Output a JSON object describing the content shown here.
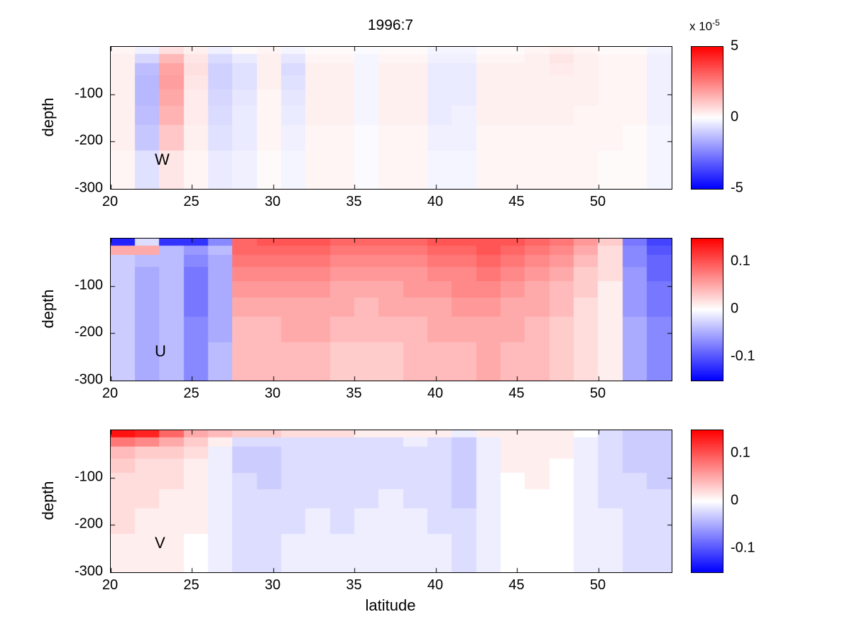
{
  "title": "1996:7",
  "axes": {
    "xlabel": "latitude",
    "ylabel": "depth"
  },
  "colors": {
    "positive_max": "#ff0000",
    "zero": "#ffffff",
    "negative_max": "#0000ff",
    "axis": "#000000",
    "background": "#ffffff"
  },
  "chart_data": [
    {
      "type": "heatmap",
      "label": "W",
      "x": {
        "name": "latitude",
        "range": [
          20,
          54.5
        ],
        "ticks": [
          20,
          25,
          30,
          35,
          40,
          45,
          50
        ]
      },
      "y": {
        "name": "depth",
        "range": [
          0,
          -300
        ],
        "ticks": [
          -100,
          -200,
          -300
        ]
      },
      "lat_edges": [
        20,
        21.5,
        23,
        24.5,
        26,
        27.5,
        29,
        30.5,
        32,
        33.5,
        35,
        36.5,
        38,
        39.5,
        41,
        42.5,
        44,
        45.5,
        47,
        48.5,
        50,
        51.5,
        53,
        54.5
      ],
      "depth_edges": [
        0,
        -15,
        -35,
        -60,
        -90,
        -125,
        -165,
        -220,
        -300
      ],
      "clim": [
        -5,
        5
      ],
      "value_scale": "1e-5",
      "colorbar": {
        "ticks": [
          {
            "value": 5,
            "label": "5"
          },
          {
            "value": 0,
            "label": "0"
          },
          {
            "value": -5,
            "label": "-5"
          }
        ],
        "exponent_prefix": "x 10",
        "exponent_sup": "-5"
      },
      "values": [
        [
          0.2,
          -0.3,
          0.6,
          0.3,
          -0.3,
          0.1,
          0.2,
          -0.2,
          0.1,
          0.1,
          -0.1,
          0.1,
          0.1,
          -0.2,
          -0.2,
          0.1,
          0.1,
          0.2,
          0.3,
          0.2,
          0.1,
          0.1,
          -0.2
        ],
        [
          0.3,
          -0.8,
          1.4,
          0.5,
          -0.7,
          -0.4,
          0.3,
          -0.5,
          0.2,
          0.2,
          -0.2,
          0.2,
          0.2,
          -0.3,
          -0.3,
          0.2,
          0.2,
          0.3,
          0.5,
          0.3,
          0.2,
          0.2,
          -0.3
        ],
        [
          0.3,
          -1.3,
          1.8,
          0.6,
          -0.9,
          -0.6,
          0.3,
          -0.7,
          0.3,
          0.3,
          -0.2,
          0.3,
          0.3,
          -0.4,
          -0.4,
          0.3,
          0.3,
          0.3,
          0.4,
          0.3,
          0.2,
          0.2,
          -0.3
        ],
        [
          0.3,
          -1.4,
          1.9,
          0.5,
          -0.9,
          -0.6,
          0.3,
          -0.6,
          0.3,
          0.3,
          -0.2,
          0.3,
          0.3,
          -0.4,
          -0.4,
          0.3,
          0.3,
          0.3,
          0.3,
          0.3,
          0.2,
          0.2,
          -0.3
        ],
        [
          0.3,
          -1.4,
          1.7,
          0.4,
          -0.8,
          -0.5,
          0.2,
          -0.5,
          0.3,
          0.3,
          -0.2,
          0.3,
          0.3,
          -0.4,
          -0.4,
          0.3,
          0.3,
          0.3,
          0.3,
          0.3,
          0.2,
          0.2,
          -0.3
        ],
        [
          0.3,
          -1.3,
          1.5,
          0.4,
          -0.7,
          -0.4,
          0.2,
          -0.4,
          0.3,
          0.3,
          -0.2,
          0.3,
          0.3,
          -0.4,
          -0.3,
          0.3,
          0.3,
          0.3,
          0.3,
          0.2,
          0.2,
          0.2,
          -0.3
        ],
        [
          0.3,
          -1.1,
          1.1,
          0.3,
          -0.6,
          -0.4,
          0.2,
          -0.3,
          0.2,
          0.2,
          -0.1,
          0.2,
          0.2,
          -0.3,
          -0.3,
          0.2,
          0.2,
          0.2,
          0.2,
          0.2,
          0.2,
          0.1,
          -0.2
        ],
        [
          0.2,
          -0.6,
          0.5,
          0.2,
          -0.4,
          -0.3,
          0.1,
          -0.2,
          0.2,
          0.2,
          -0.1,
          0.2,
          0.2,
          -0.2,
          -0.2,
          0.2,
          0.2,
          0.2,
          0.2,
          0.2,
          0.1,
          0.1,
          -0.2
        ]
      ]
    },
    {
      "type": "heatmap",
      "label": "U",
      "x": {
        "name": "latitude",
        "range": [
          20,
          54.5
        ],
        "ticks": [
          20,
          25,
          30,
          35,
          40,
          45,
          50
        ]
      },
      "y": {
        "name": "depth",
        "range": [
          0,
          -300
        ],
        "ticks": [
          -100,
          -200,
          -300
        ]
      },
      "lat_edges": [
        20,
        21.5,
        23,
        24.5,
        26,
        27.5,
        29,
        30.5,
        32,
        33.5,
        35,
        36.5,
        38,
        39.5,
        41,
        42.5,
        44,
        45.5,
        47,
        48.5,
        50,
        51.5,
        53,
        54.5
      ],
      "depth_edges": [
        0,
        -15,
        -35,
        -60,
        -90,
        -125,
        -165,
        -220,
        -300
      ],
      "clim": [
        -0.15,
        0.15
      ],
      "value_scale": "1",
      "colorbar": {
        "ticks": [
          {
            "value": 0.1,
            "label": "0.1"
          },
          {
            "value": 0,
            "label": "0"
          },
          {
            "value": -0.1,
            "label": "-0.1"
          }
        ]
      },
      "values": [
        [
          -0.13,
          -0.02,
          -0.12,
          -0.12,
          -0.07,
          0.09,
          0.1,
          0.1,
          0.1,
          0.09,
          0.09,
          0.09,
          0.09,
          0.1,
          0.1,
          0.1,
          0.1,
          0.09,
          0.08,
          0.06,
          0.03,
          -0.08,
          -0.11
        ],
        [
          0.05,
          0.05,
          -0.04,
          -0.06,
          -0.04,
          0.09,
          0.09,
          0.09,
          0.09,
          0.08,
          0.08,
          0.08,
          0.08,
          0.09,
          0.09,
          0.1,
          0.09,
          0.08,
          0.07,
          0.05,
          0.02,
          -0.07,
          -0.1
        ],
        [
          -0.03,
          -0.04,
          -0.04,
          -0.07,
          -0.05,
          0.08,
          0.08,
          0.08,
          0.08,
          0.07,
          0.07,
          0.07,
          0.07,
          0.08,
          0.08,
          0.09,
          0.08,
          0.07,
          0.06,
          0.04,
          0.02,
          -0.07,
          -0.09
        ],
        [
          -0.03,
          -0.05,
          -0.04,
          -0.08,
          -0.05,
          0.07,
          0.07,
          0.07,
          0.07,
          0.06,
          0.06,
          0.06,
          0.06,
          0.07,
          0.07,
          0.08,
          0.07,
          0.06,
          0.05,
          0.03,
          0.02,
          -0.06,
          -0.09
        ],
        [
          -0.03,
          -0.05,
          -0.04,
          -0.08,
          -0.05,
          0.06,
          0.06,
          0.06,
          0.06,
          0.05,
          0.05,
          0.05,
          0.06,
          0.06,
          0.07,
          0.07,
          0.06,
          0.05,
          0.04,
          0.03,
          0.01,
          -0.06,
          -0.08
        ],
        [
          -0.03,
          -0.05,
          -0.04,
          -0.08,
          -0.05,
          0.05,
          0.05,
          0.05,
          0.05,
          0.05,
          0.04,
          0.05,
          0.05,
          0.05,
          0.06,
          0.06,
          0.05,
          0.05,
          0.04,
          0.02,
          0.01,
          -0.06,
          -0.08
        ],
        [
          -0.03,
          -0.05,
          -0.04,
          -0.07,
          -0.05,
          0.04,
          0.04,
          0.05,
          0.05,
          0.04,
          0.04,
          0.04,
          0.04,
          0.05,
          0.05,
          0.05,
          0.05,
          0.04,
          0.03,
          0.02,
          0.01,
          -0.05,
          -0.07
        ],
        [
          -0.03,
          -0.05,
          -0.04,
          -0.07,
          -0.04,
          0.04,
          0.04,
          0.04,
          0.04,
          0.03,
          0.03,
          0.03,
          0.04,
          0.04,
          0.04,
          0.05,
          0.04,
          0.04,
          0.03,
          0.02,
          0.01,
          -0.05,
          -0.07
        ]
      ]
    },
    {
      "type": "heatmap",
      "label": "V",
      "x": {
        "name": "latitude",
        "range": [
          20,
          54.5
        ],
        "ticks": [
          20,
          25,
          30,
          35,
          40,
          45,
          50
        ]
      },
      "y": {
        "name": "depth",
        "range": [
          0,
          -300
        ],
        "ticks": [
          -100,
          -200,
          -300
        ]
      },
      "lat_edges": [
        20,
        21.5,
        23,
        24.5,
        26,
        27.5,
        29,
        30.5,
        32,
        33.5,
        35,
        36.5,
        38,
        39.5,
        41,
        42.5,
        44,
        45.5,
        47,
        48.5,
        50,
        51.5,
        53,
        54.5
      ],
      "depth_edges": [
        0,
        -15,
        -35,
        -60,
        -90,
        -125,
        -165,
        -220,
        -300
      ],
      "clim": [
        -0.15,
        0.15
      ],
      "value_scale": "1",
      "colorbar": {
        "ticks": [
          {
            "value": 0.1,
            "label": "0.1"
          },
          {
            "value": 0,
            "label": "0"
          },
          {
            "value": -0.1,
            "label": "-0.1"
          }
        ]
      },
      "values": [
        [
          0.14,
          0.13,
          0.09,
          0.05,
          0.04,
          0.03,
          0.03,
          0.02,
          0.02,
          0.02,
          0.01,
          0.01,
          0.01,
          0.01,
          -0.01,
          0.01,
          0.01,
          0.01,
          0.01,
          0.0,
          -0.02,
          -0.03,
          -0.03
        ],
        [
          0.08,
          0.07,
          0.05,
          0.03,
          0.01,
          -0.02,
          -0.02,
          -0.02,
          -0.02,
          -0.02,
          -0.02,
          -0.02,
          -0.01,
          -0.02,
          -0.03,
          -0.01,
          0.01,
          0.01,
          0.01,
          -0.01,
          -0.02,
          -0.03,
          -0.03
        ],
        [
          0.04,
          0.03,
          0.03,
          0.02,
          -0.01,
          -0.03,
          -0.03,
          -0.02,
          -0.02,
          -0.02,
          -0.02,
          -0.02,
          -0.02,
          -0.02,
          -0.03,
          -0.01,
          0.01,
          0.01,
          0.01,
          -0.01,
          -0.02,
          -0.03,
          -0.03
        ],
        [
          0.03,
          0.02,
          0.02,
          0.01,
          -0.01,
          -0.03,
          -0.03,
          -0.02,
          -0.02,
          -0.02,
          -0.02,
          -0.02,
          -0.02,
          -0.02,
          -0.03,
          -0.01,
          0.01,
          0.01,
          0.0,
          -0.01,
          -0.02,
          -0.03,
          -0.03
        ],
        [
          0.02,
          0.02,
          0.02,
          0.01,
          -0.01,
          -0.02,
          -0.03,
          -0.02,
          -0.02,
          -0.02,
          -0.02,
          -0.02,
          -0.02,
          -0.02,
          -0.03,
          -0.01,
          0.0,
          0.01,
          0.0,
          -0.01,
          -0.02,
          -0.02,
          -0.03
        ],
        [
          0.02,
          0.02,
          0.01,
          0.01,
          -0.01,
          -0.02,
          -0.02,
          -0.02,
          -0.02,
          -0.02,
          -0.02,
          -0.01,
          -0.02,
          -0.02,
          -0.03,
          -0.01,
          0.0,
          0.0,
          0.0,
          -0.01,
          -0.02,
          -0.02,
          -0.02
        ],
        [
          0.02,
          0.01,
          0.01,
          0.01,
          -0.01,
          -0.02,
          -0.02,
          -0.02,
          -0.01,
          -0.02,
          -0.01,
          -0.01,
          -0.01,
          -0.02,
          -0.02,
          -0.01,
          0.0,
          0.0,
          0.0,
          -0.01,
          -0.01,
          -0.02,
          -0.02
        ],
        [
          0.01,
          0.01,
          0.01,
          0.0,
          -0.01,
          -0.02,
          -0.02,
          -0.01,
          -0.01,
          -0.01,
          -0.01,
          -0.01,
          -0.01,
          -0.01,
          -0.02,
          -0.01,
          0.0,
          0.0,
          0.0,
          -0.01,
          -0.01,
          -0.02,
          -0.02
        ]
      ]
    }
  ]
}
